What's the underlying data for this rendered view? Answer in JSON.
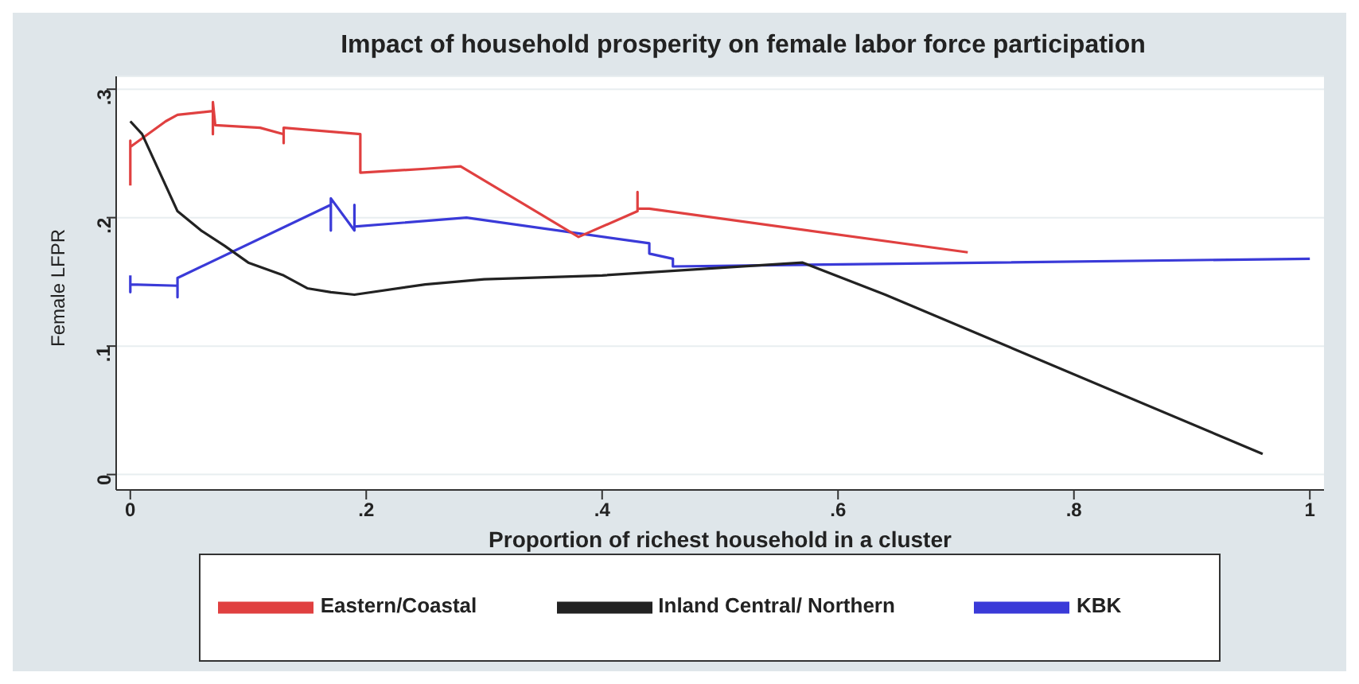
{
  "chart_data": {
    "type": "line",
    "title": "Impact of household prosperity on female labor force participation",
    "xlabel": "Proportion of richest household in a cluster",
    "ylabel": "Female LFPR",
    "xlim": [
      -0.012,
      1.012
    ],
    "ylim": [
      -0.012,
      0.31
    ],
    "xticks": [
      {
        "value": 0,
        "label": "0"
      },
      {
        "value": 0.2,
        "label": ".2"
      },
      {
        "value": 0.4,
        "label": ".4"
      },
      {
        "value": 0.6,
        "label": ".6"
      },
      {
        "value": 0.8,
        "label": ".8"
      },
      {
        "value": 1,
        "label": "1"
      }
    ],
    "yticks": [
      {
        "value": 0,
        "label": "0"
      },
      {
        "value": 0.1,
        "label": ".1"
      },
      {
        "value": 0.2,
        "label": ".2"
      },
      {
        "value": 0.3,
        "label": ".3"
      }
    ],
    "grid": "y",
    "legend": "bottom",
    "marker": "none",
    "line_style": "solid",
    "series": [
      {
        "name": "KBK",
        "color": "#3a3ad8",
        "x": [
          0,
          0,
          0,
          0.04,
          0.04,
          0.04,
          0.17,
          0.17,
          0.17,
          0.19,
          0.19,
          0.19,
          0.285,
          0.44,
          0.44,
          0.46,
          0.46,
          1
        ],
        "values": [
          0.155,
          0.142,
          0.148,
          0.147,
          0.138,
          0.153,
          0.21,
          0.19,
          0.215,
          0.19,
          0.21,
          0.193,
          0.2,
          0.18,
          0.172,
          0.168,
          0.162,
          0.168
        ]
      },
      {
        "name": "Eastern/Coastal",
        "color": "#e04040",
        "x": [
          0,
          0,
          0,
          0.03,
          0.04,
          0.07,
          0.07,
          0.07,
          0.072,
          0.11,
          0.13,
          0.13,
          0.13,
          0.195,
          0.195,
          0.25,
          0.28,
          0.38,
          0.43,
          0.43,
          0.43,
          0.44,
          0.71
        ],
        "values": [
          0.225,
          0.26,
          0.255,
          0.275,
          0.28,
          0.283,
          0.265,
          0.29,
          0.272,
          0.27,
          0.265,
          0.258,
          0.27,
          0.265,
          0.235,
          0.238,
          0.24,
          0.185,
          0.205,
          0.22,
          0.207,
          0.207,
          0.173
        ]
      },
      {
        "name": "Inland Central/ Northern",
        "color": "#222222",
        "x": [
          0,
          0.01,
          0.04,
          0.06,
          0.08,
          0.1,
          0.13,
          0.15,
          0.17,
          0.19,
          0.25,
          0.3,
          0.4,
          0.57,
          0.64,
          0.96
        ],
        "values": [
          0.275,
          0.265,
          0.205,
          0.19,
          0.178,
          0.165,
          0.155,
          0.145,
          0.142,
          0.14,
          0.148,
          0.152,
          0.155,
          0.165,
          0.14,
          0.016
        ]
      }
    ]
  }
}
